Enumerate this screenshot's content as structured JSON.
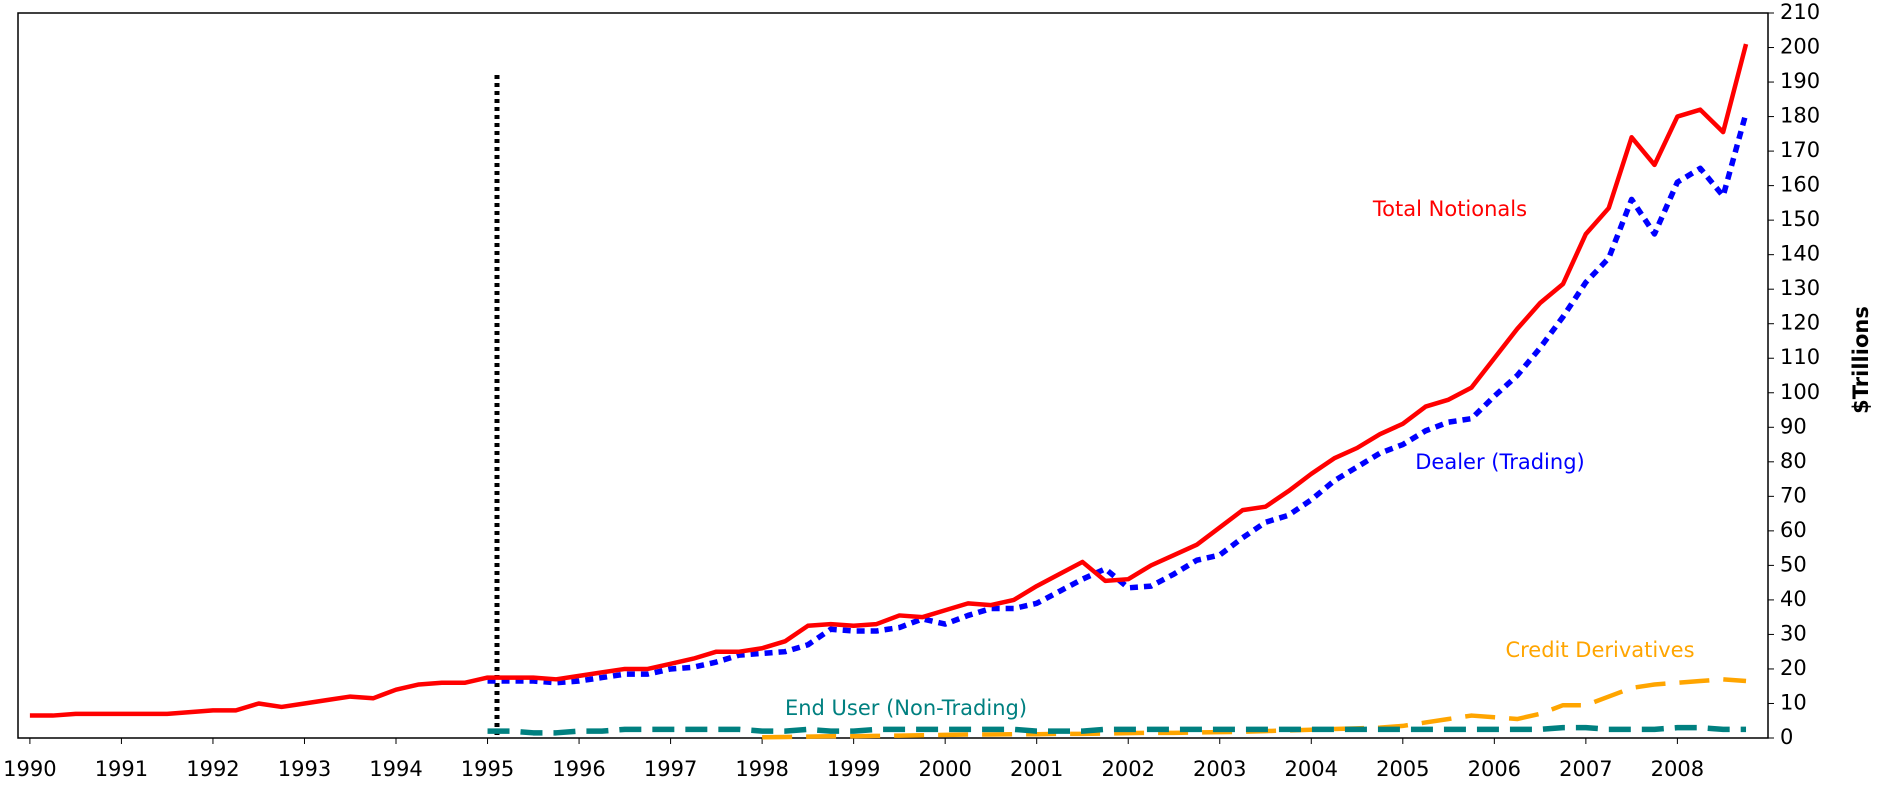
{
  "chart_data": {
    "type": "line",
    "y_label": "$Trillions",
    "x": [
      1990,
      1990.25,
      1990.5,
      1990.75,
      1991,
      1991.25,
      1991.5,
      1991.75,
      1992,
      1992.25,
      1992.5,
      1992.75,
      1993,
      1993.25,
      1993.5,
      1993.75,
      1994,
      1994.25,
      1994.5,
      1994.75,
      1995,
      1995.25,
      1995.5,
      1995.75,
      1996,
      1996.25,
      1996.5,
      1996.75,
      1997,
      1997.25,
      1997.5,
      1997.75,
      1998,
      1998.25,
      1998.5,
      1998.75,
      1999,
      1999.25,
      1999.5,
      1999.75,
      2000,
      2000.25,
      2000.5,
      2000.75,
      2001,
      2001.25,
      2001.5,
      2001.75,
      2002,
      2002.25,
      2002.5,
      2002.75,
      2003,
      2003.25,
      2003.5,
      2003.75,
      2004,
      2004.25,
      2004.5,
      2004.75,
      2005,
      2005.25,
      2005.5,
      2005.75,
      2006,
      2006.25,
      2006.5,
      2006.75,
      2007,
      2007.25,
      2007.5,
      2007.75,
      2008,
      2008.25,
      2008.5,
      2008.75
    ],
    "xlim": [
      1989.87,
      2008.99
    ],
    "xticks": [
      1990,
      1991,
      1992,
      1993,
      1994,
      1995,
      1996,
      1997,
      1998,
      1999,
      2000,
      2001,
      2002,
      2003,
      2004,
      2005,
      2006,
      2007,
      2008
    ],
    "ylim": [
      0,
      210
    ],
    "yticks": [
      0,
      10,
      20,
      30,
      40,
      50,
      60,
      70,
      80,
      90,
      100,
      110,
      120,
      130,
      140,
      150,
      160,
      170,
      180,
      190,
      200,
      210
    ],
    "y_axis_side": "right",
    "series": [
      {
        "name": "Total Notionals",
        "color": "#ff0000",
        "style": "solid",
        "values": [
          6.5,
          6.5,
          7,
          7,
          7,
          7,
          7,
          7.5,
          8,
          8,
          10,
          9,
          10,
          11,
          12,
          11.5,
          14,
          15.5,
          16,
          16,
          17.5,
          17.5,
          17.5,
          17,
          18,
          19,
          20,
          20,
          21.5,
          23,
          25,
          25,
          26,
          28,
          32.5,
          33,
          32.5,
          33,
          35.5,
          35,
          37,
          39,
          38.5,
          40,
          44,
          47.5,
          51,
          45.5,
          46,
          50,
          53,
          56,
          61,
          66,
          67,
          71.5,
          76.5,
          81,
          84,
          88,
          91,
          96,
          98,
          101.5,
          110,
          118.5,
          126,
          131.5,
          146,
          153.5,
          174,
          166,
          180,
          182,
          175.5,
          201
        ]
      },
      {
        "name": "Dealer (Trading)",
        "color": "#0000ff",
        "style": "dotted",
        "values": [
          null,
          null,
          null,
          null,
          null,
          null,
          null,
          null,
          null,
          null,
          null,
          null,
          null,
          null,
          null,
          null,
          null,
          null,
          null,
          null,
          16.5,
          16.5,
          16.5,
          16,
          16.5,
          17.5,
          18.5,
          18.5,
          20,
          20.5,
          22,
          24,
          24.5,
          25,
          27,
          31.5,
          31,
          31,
          32,
          34.5,
          33,
          35.5,
          37.5,
          37.5,
          39,
          42.5,
          46,
          49,
          43.5,
          44,
          47.5,
          51.5,
          53,
          58,
          62.5,
          64.5,
          69,
          74.5,
          78.5,
          82.5,
          85,
          89,
          91.5,
          92.5,
          99,
          105,
          113,
          122,
          132,
          139,
          156,
          146,
          161,
          165,
          157,
          181
        ]
      },
      {
        "name": "End User (Non-Trading)",
        "color": "#008080",
        "style": "dashed",
        "values": [
          null,
          null,
          null,
          null,
          null,
          null,
          null,
          null,
          null,
          null,
          null,
          null,
          null,
          null,
          null,
          null,
          null,
          null,
          null,
          null,
          2,
          2,
          1.5,
          1.5,
          2,
          2,
          2.5,
          2.5,
          2.5,
          2.5,
          2.5,
          2.5,
          2,
          2,
          2.5,
          2,
          2,
          2.5,
          2.5,
          2.5,
          2.5,
          2.5,
          2.5,
          2.5,
          2,
          2,
          2,
          2.5,
          2.5,
          2.5,
          2.5,
          2.5,
          2.5,
          2.5,
          2.5,
          2.5,
          2.5,
          2.5,
          2.5,
          2.5,
          2.5,
          2.5,
          2.5,
          2.5,
          2.5,
          2.5,
          2.5,
          3,
          3,
          2.5,
          2.5,
          2.5,
          3,
          3,
          2.5,
          2.5
        ]
      },
      {
        "name": "Credit Derivatives",
        "color": "#ffa500",
        "style": "longdash",
        "values": [
          null,
          null,
          null,
          null,
          null,
          null,
          null,
          null,
          null,
          null,
          null,
          null,
          null,
          null,
          null,
          null,
          null,
          null,
          null,
          null,
          null,
          null,
          null,
          null,
          null,
          null,
          null,
          null,
          null,
          null,
          null,
          null,
          0.2,
          0.3,
          0.4,
          0.5,
          0.5,
          0.6,
          0.7,
          0.8,
          0.9,
          1,
          1,
          1.1,
          1.1,
          1.2,
          1.2,
          1.3,
          1.4,
          1.5,
          1.5,
          1.6,
          1.7,
          1.8,
          2,
          2.2,
          2.4,
          2.6,
          2.8,
          3,
          3.5,
          4.5,
          5.5,
          6.5,
          6,
          5.5,
          7,
          9.5,
          9.5,
          12,
          14.5,
          15.5,
          16,
          16.5,
          17,
          16.5
        ]
      }
    ]
  }
}
